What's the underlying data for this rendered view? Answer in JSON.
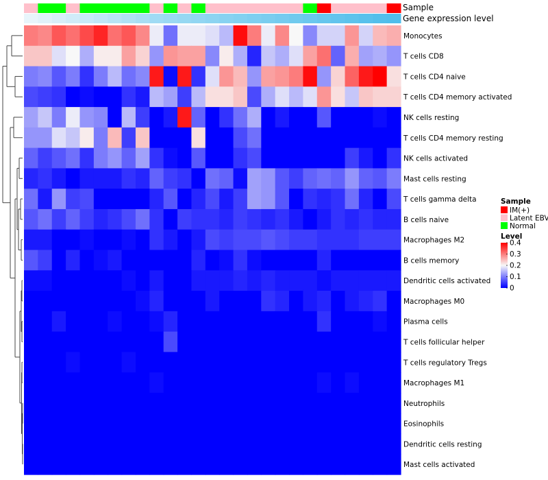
{
  "chart_data": {
    "type": "heatmap",
    "title": "",
    "annotation_labels": {
      "sample": "Sample",
      "gene_expression": "Gene expression level"
    },
    "sample_groups": [
      "Latent EBV",
      "Normal",
      "Normal",
      "Latent EBV",
      "Normal",
      "Normal",
      "Normal",
      "Normal",
      "Normal",
      "Latent EBV",
      "Normal",
      "Latent EBV",
      "Normal",
      "Latent EBV",
      "Latent EBV",
      "Latent EBV",
      "Latent EBV",
      "Latent EBV",
      "Latent EBV",
      "Latent EBV",
      "Normal",
      "IM(+)",
      "Latent EBV",
      "Latent EBV",
      "Latent EBV",
      "Latent EBV",
      "IM(+)"
    ],
    "gene_expression_level": [
      0.05,
      0.1,
      0.15,
      0.2,
      0.25,
      0.3,
      0.35,
      0.4,
      0.45,
      0.5,
      0.53,
      0.56,
      0.59,
      0.62,
      0.65,
      0.68,
      0.71,
      0.74,
      0.77,
      0.8,
      0.83,
      0.86,
      0.89,
      0.92,
      0.95,
      0.98,
      1.0
    ],
    "rows": [
      "Monocytes",
      "T cells CD8",
      "T cells CD4 naive",
      "T cells CD4 memory activated",
      "NK cells resting",
      "T cells CD4 memory resting",
      "NK cells activated",
      "Mast cells resting",
      "T cells gamma delta",
      "B cells naive",
      "Macrophages M2",
      "B cells memory",
      "Dendritic cells activated",
      "Macrophages M0",
      "Plasma cells",
      "T cells follicular helper",
      "T cells regulatory  Tregs",
      "Macrophages M1",
      "Neutrophils",
      "Eosinophils",
      "Dendritic cells resting",
      "Mast cells activated"
    ],
    "values": [
      [
        0.3,
        0.29,
        0.33,
        0.31,
        0.34,
        0.37,
        0.31,
        0.33,
        0.29,
        0.19,
        0.09,
        0.19,
        0.19,
        0.18,
        0.15,
        0.39,
        0.3,
        0.19,
        0.29,
        0.2,
        0.11,
        0.17,
        0.17,
        0.28,
        0.17,
        0.25,
        0.26
      ],
      [
        0.24,
        0.24,
        0.18,
        0.2,
        0.14,
        0.21,
        0.21,
        0.27,
        0.23,
        0.12,
        0.28,
        0.27,
        0.27,
        0.11,
        0.21,
        0.14,
        0.03,
        0.16,
        0.14,
        0.18,
        0.27,
        0.31,
        0.08,
        0.26,
        0.13,
        0.14,
        0.12
      ],
      [
        0.1,
        0.11,
        0.07,
        0.1,
        0.04,
        0.1,
        0.15,
        0.09,
        0.11,
        0.38,
        0.01,
        0.38,
        0.04,
        0.18,
        0.28,
        0.25,
        0.12,
        0.27,
        0.28,
        0.3,
        0.39,
        0.12,
        0.23,
        0.32,
        0.38,
        0.4,
        0.22
      ],
      [
        0.06,
        0.05,
        0.04,
        0.0,
        0.01,
        0.0,
        0.0,
        0.04,
        0.02,
        0.15,
        0.13,
        0.05,
        0.15,
        0.22,
        0.22,
        0.24,
        0.06,
        0.14,
        0.18,
        0.15,
        0.18,
        0.28,
        0.22,
        0.16,
        0.24,
        0.23,
        0.23
      ],
      [
        0.13,
        0.16,
        0.1,
        0.19,
        0.12,
        0.11,
        0.0,
        0.15,
        0.05,
        0.0,
        0.02,
        0.38,
        0.08,
        0.0,
        0.04,
        0.09,
        0.14,
        0.0,
        0.02,
        0.0,
        0.0,
        0.07,
        0.0,
        0.0,
        0.0,
        0.01,
        0.0
      ],
      [
        0.12,
        0.12,
        0.18,
        0.16,
        0.21,
        0.1,
        0.25,
        0.05,
        0.24,
        0.0,
        0.0,
        0.0,
        0.22,
        0.0,
        0.0,
        0.06,
        0.09,
        0.0,
        0.0,
        0.0,
        0.0,
        0.0,
        0.0,
        0.0,
        0.0,
        0.0,
        0.0
      ],
      [
        0.08,
        0.05,
        0.07,
        0.09,
        0.04,
        0.1,
        0.12,
        0.08,
        0.13,
        0.04,
        0.01,
        0.0,
        0.07,
        0.0,
        0.0,
        0.04,
        0.06,
        0.0,
        0.0,
        0.0,
        0.0,
        0.0,
        0.0,
        0.05,
        0.02,
        0.0,
        0.04
      ],
      [
        0.03,
        0.04,
        0.02,
        0.0,
        0.02,
        0.02,
        0.02,
        0.04,
        0.03,
        0.08,
        0.05,
        0.04,
        0.0,
        0.09,
        0.08,
        0.01,
        0.13,
        0.12,
        0.07,
        0.05,
        0.08,
        0.09,
        0.08,
        0.12,
        0.08,
        0.07,
        0.1
      ],
      [
        0.09,
        0.02,
        0.12,
        0.05,
        0.06,
        0.0,
        0.0,
        0.0,
        0.0,
        0.03,
        0.07,
        0.0,
        0.03,
        0.06,
        0.02,
        0.05,
        0.13,
        0.12,
        0.07,
        0.0,
        0.04,
        0.03,
        0.04,
        0.09,
        0.03,
        0.0,
        0.06
      ],
      [
        0.07,
        0.09,
        0.05,
        0.08,
        0.05,
        0.03,
        0.04,
        0.06,
        0.09,
        0.04,
        0.0,
        0.05,
        0.04,
        0.04,
        0.03,
        0.05,
        0.04,
        0.03,
        0.04,
        0.02,
        0.0,
        0.02,
        0.04,
        0.03,
        0.04,
        0.03,
        0.03
      ],
      [
        0.02,
        0.02,
        0.0,
        0.0,
        0.01,
        0.0,
        0.0,
        0.01,
        0.0,
        0.04,
        0.02,
        0.0,
        0.02,
        0.06,
        0.05,
        0.06,
        0.06,
        0.07,
        0.06,
        0.05,
        0.05,
        0.04,
        0.04,
        0.04,
        0.05,
        0.05,
        0.05
      ],
      [
        0.07,
        0.05,
        0.0,
        0.03,
        0.0,
        0.01,
        0.02,
        0.0,
        0.0,
        0.0,
        0.0,
        0.0,
        0.03,
        0.0,
        0.01,
        0.04,
        0.01,
        0.0,
        0.0,
        0.0,
        0.0,
        0.03,
        0.0,
        0.0,
        0.0,
        0.0,
        0.0
      ],
      [
        0.01,
        0.01,
        0.0,
        0.0,
        0.0,
        0.0,
        0.0,
        0.01,
        0.0,
        0.02,
        0.0,
        0.0,
        0.02,
        0.02,
        0.02,
        0.03,
        0.02,
        0.03,
        0.02,
        0.02,
        0.02,
        0.01,
        0.02,
        0.02,
        0.02,
        0.02,
        0.02
      ],
      [
        0.0,
        0.0,
        0.0,
        0.0,
        0.0,
        0.0,
        0.0,
        0.0,
        0.01,
        0.03,
        0.0,
        0.0,
        0.0,
        0.02,
        0.0,
        0.0,
        0.0,
        0.04,
        0.03,
        0.0,
        0.02,
        0.03,
        0.0,
        0.02,
        0.03,
        0.04,
        0.0
      ],
      [
        0.0,
        0.0,
        0.02,
        0.0,
        0.0,
        0.0,
        0.01,
        0.0,
        0.0,
        0.01,
        0.03,
        0.0,
        0.0,
        0.0,
        0.0,
        0.0,
        0.0,
        0.0,
        0.0,
        0.0,
        0.0,
        0.04,
        0.0,
        0.0,
        0.0,
        0.01,
        0.0
      ],
      [
        0.0,
        0.0,
        0.0,
        0.0,
        0.0,
        0.0,
        0.0,
        0.0,
        0.0,
        0.0,
        0.06,
        0.0,
        0.0,
        0.0,
        0.0,
        0.0,
        0.0,
        0.0,
        0.0,
        0.0,
        0.0,
        0.0,
        0.0,
        0.0,
        0.0,
        0.0,
        0.0
      ],
      [
        0.0,
        0.0,
        0.0,
        0.01,
        0.0,
        0.0,
        0.0,
        0.01,
        0.0,
        0.0,
        0.0,
        0.0,
        0.0,
        0.0,
        0.0,
        0.0,
        0.0,
        0.0,
        0.0,
        0.0,
        0.0,
        0.0,
        0.0,
        0.0,
        0.0,
        0.0,
        0.0
      ],
      [
        0.0,
        0.0,
        0.0,
        0.0,
        0.0,
        0.0,
        0.0,
        0.0,
        0.0,
        0.01,
        0.0,
        0.0,
        0.0,
        0.0,
        0.0,
        0.0,
        0.0,
        0.0,
        0.0,
        0.0,
        0.0,
        0.01,
        0.0,
        0.01,
        0.0,
        0.0,
        0.0
      ],
      [
        0.0,
        0.0,
        0.0,
        0.0,
        0.0,
        0.0,
        0.0,
        0.0,
        0.0,
        0.0,
        0.0,
        0.0,
        0.0,
        0.0,
        0.0,
        0.0,
        0.0,
        0.0,
        0.0,
        0.0,
        0.0,
        0.0,
        0.0,
        0.0,
        0.0,
        0.0,
        0.0
      ],
      [
        0.0,
        0.0,
        0.0,
        0.0,
        0.0,
        0.0,
        0.0,
        0.0,
        0.0,
        0.0,
        0.0,
        0.0,
        0.0,
        0.0,
        0.0,
        0.0,
        0.0,
        0.0,
        0.0,
        0.0,
        0.0,
        0.0,
        0.0,
        0.0,
        0.0,
        0.0,
        0.0
      ],
      [
        0.0,
        0.0,
        0.0,
        0.0,
        0.0,
        0.0,
        0.0,
        0.0,
        0.0,
        0.0,
        0.0,
        0.0,
        0.0,
        0.0,
        0.0,
        0.0,
        0.0,
        0.0,
        0.0,
        0.0,
        0.0,
        0.0,
        0.0,
        0.0,
        0.0,
        0.0,
        0.0
      ],
      [
        0.0,
        0.0,
        0.0,
        0.0,
        0.0,
        0.0,
        0.0,
        0.0,
        0.0,
        0.0,
        0.0,
        0.0,
        0.0,
        0.0,
        0.0,
        0.0,
        0.0,
        0.0,
        0.0,
        0.0,
        0.0,
        0.0,
        0.0,
        0.0,
        0.0,
        0.0,
        0.0
      ]
    ],
    "legend": {
      "sample_title": "Sample",
      "sample_entries": [
        {
          "label": "IM(+)",
          "color": "#ff0000"
        },
        {
          "label": "Latent EBV",
          "color": "#ffc0cb"
        },
        {
          "label": "Normal",
          "color": "#00ff00"
        }
      ],
      "level_title": "Level",
      "level_ticks": [
        "0.4",
        "0.3",
        "0.2",
        "0.1",
        "0"
      ],
      "level_tick_values": [
        0.4,
        0.3,
        0.2,
        0.1,
        0
      ],
      "range": [
        0,
        0.4
      ],
      "colors": {
        "low": "#0000ff",
        "mid": "#f8f8f8",
        "high": "#ff0000"
      },
      "placement": "right"
    },
    "dendrogram": "left"
  }
}
